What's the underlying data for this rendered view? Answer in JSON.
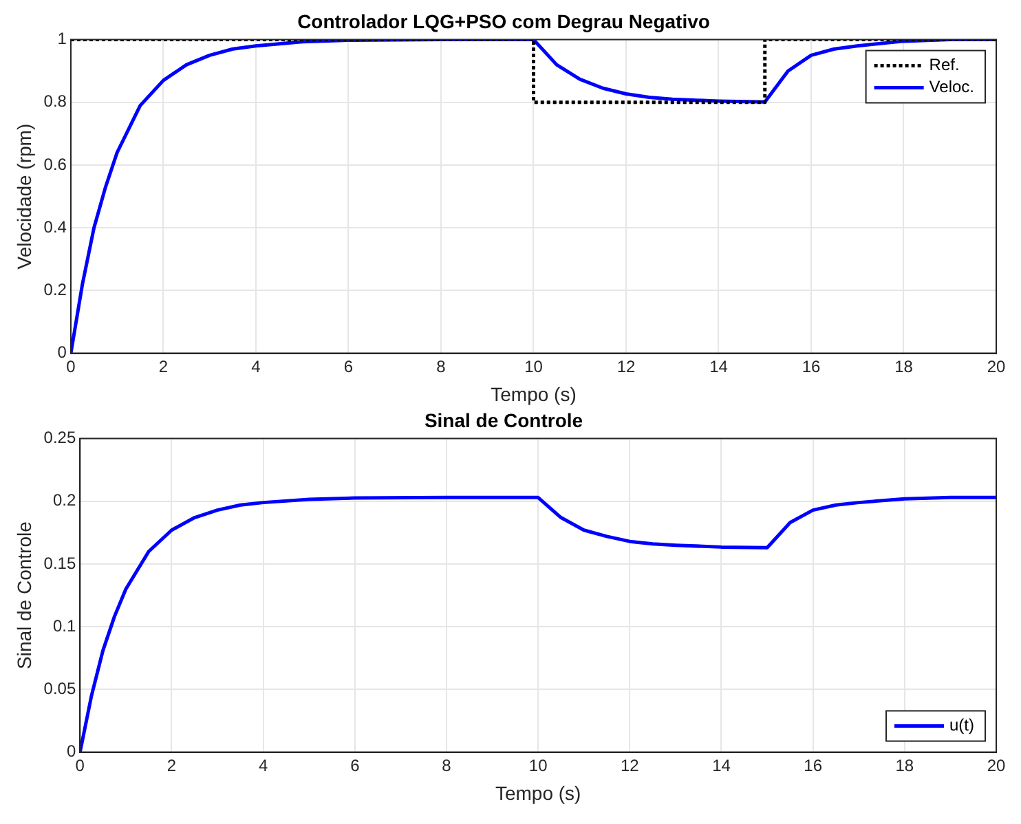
{
  "chart_data": [
    {
      "type": "line",
      "title": "Controlador LQG+PSO com Degrau Negativo",
      "xlabel": "Tempo (s)",
      "ylabel": "Velocidade (rpm)",
      "xlim": [
        0,
        20
      ],
      "xticks": [
        0,
        2,
        4,
        6,
        8,
        10,
        12,
        14,
        16,
        18,
        20
      ],
      "ylim": [
        0,
        1
      ],
      "yticks": [
        0,
        0.2,
        0.4,
        0.6,
        0.8,
        1
      ],
      "grid": true,
      "legend": "top right",
      "marker": "none",
      "series": [
        {
          "name": "Ref.",
          "color": "#000000",
          "line_style": "dotted",
          "x": [
            0,
            10,
            10,
            15,
            15,
            20
          ],
          "values": [
            1,
            1,
            0.8,
            0.8,
            1,
            1
          ]
        },
        {
          "name": "Veloc.",
          "color": "#0000ff",
          "line_style": "solid",
          "x": [
            0,
            0.25,
            0.5,
            0.75,
            1,
            1.5,
            2,
            2.5,
            3,
            3.5,
            4,
            5,
            6,
            8,
            10,
            10.5,
            11,
            11.5,
            12,
            12.5,
            13,
            14,
            15,
            15.5,
            16,
            16.5,
            17,
            18,
            19,
            20
          ],
          "values": [
            0,
            0.22,
            0.4,
            0.53,
            0.64,
            0.79,
            0.87,
            0.92,
            0.95,
            0.97,
            0.98,
            0.993,
            0.998,
            1,
            1,
            0.92,
            0.874,
            0.845,
            0.827,
            0.816,
            0.81,
            0.804,
            0.801,
            0.9,
            0.95,
            0.97,
            0.98,
            0.995,
            1,
            1
          ]
        }
      ]
    },
    {
      "type": "line",
      "title": "Sinal de Controle",
      "xlabel": "Tempo (s)",
      "ylabel": "Sinal de Controle",
      "xlim": [
        0,
        20
      ],
      "xticks": [
        0,
        2,
        4,
        6,
        8,
        10,
        12,
        14,
        16,
        18,
        20
      ],
      "ylim": [
        0,
        0.25
      ],
      "yticks": [
        0,
        0.05,
        0.1,
        0.15,
        0.2,
        0.25
      ],
      "grid": true,
      "legend": "bottom right",
      "marker": "none",
      "series": [
        {
          "name": "u(t)",
          "color": "#0000ff",
          "line_style": "solid",
          "x": [
            0,
            0.25,
            0.5,
            0.75,
            1,
            1.5,
            2,
            2.5,
            3,
            3.5,
            4,
            5,
            6,
            8,
            10,
            10.5,
            11,
            11.5,
            12,
            12.5,
            13,
            14,
            15,
            15.5,
            16,
            16.5,
            17,
            18,
            19,
            20
          ],
          "values": [
            0,
            0.045,
            0.081,
            0.108,
            0.13,
            0.16,
            0.177,
            0.187,
            0.193,
            0.197,
            0.199,
            0.2015,
            0.2026,
            0.203,
            0.203,
            0.187,
            0.177,
            0.172,
            0.168,
            0.166,
            0.165,
            0.1635,
            0.163,
            0.183,
            0.193,
            0.197,
            0.199,
            0.202,
            0.203,
            0.203
          ]
        }
      ]
    }
  ]
}
